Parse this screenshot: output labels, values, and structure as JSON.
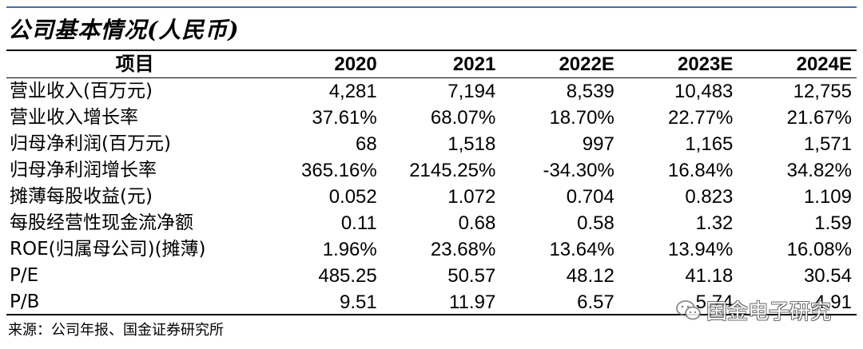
{
  "title": "公司基本情况(人民币)",
  "header": {
    "item": "项目",
    "years": [
      "2020",
      "2021",
      "2022E",
      "2023E",
      "2024E"
    ]
  },
  "rows": [
    {
      "label": "营业收入(百万元)",
      "values": [
        "4,281",
        "7,194",
        "8,539",
        "10,483",
        "12,755"
      ]
    },
    {
      "label": "营业收入增长率",
      "values": [
        "37.61%",
        "68.07%",
        "18.70%",
        "22.77%",
        "21.67%"
      ]
    },
    {
      "label": "归母净利润(百万元)",
      "values": [
        "68",
        "1,518",
        "997",
        "1,165",
        "1,571"
      ]
    },
    {
      "label": "归母净利润增长率",
      "values": [
        "365.16%",
        "2145.25%",
        "-34.30%",
        "16.84%",
        "34.82%"
      ]
    },
    {
      "label": "摊薄每股收益(元)",
      "values": [
        "0.052",
        "1.072",
        "0.704",
        "0.823",
        "1.109"
      ]
    },
    {
      "label": "每股经营性现金流净额",
      "values": [
        "0.11",
        "0.68",
        "0.58",
        "1.32",
        "1.59"
      ]
    },
    {
      "label": "ROE(归属母公司)(摊薄)",
      "values": [
        "1.96%",
        "23.68%",
        "13.64%",
        "13.94%",
        "16.08%"
      ]
    },
    {
      "label": "P/E",
      "values": [
        "485.25",
        "50.57",
        "48.12",
        "41.18",
        "30.54"
      ]
    },
    {
      "label": "P/B",
      "values": [
        "9.51",
        "11.97",
        "6.57",
        "5.74",
        "4.91"
      ]
    }
  ],
  "source": "来源：公司年报、国金证券研究所",
  "watermark": {
    "text": "国金电子研究",
    "icon": "wechat-icon"
  }
}
